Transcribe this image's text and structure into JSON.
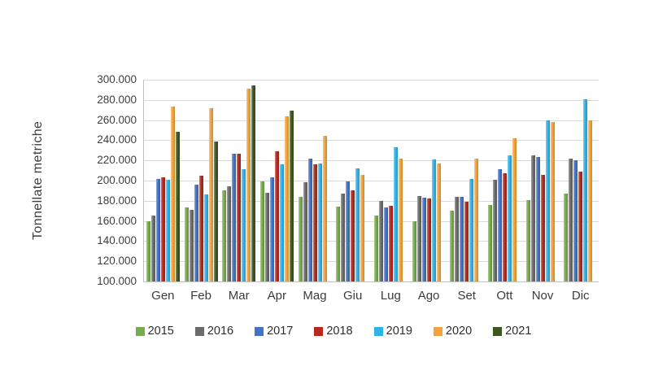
{
  "chart_data": {
    "type": "bar",
    "title": "",
    "xlabel": "",
    "ylabel": "Tonnellate metriche",
    "categories": [
      "Gen",
      "Feb",
      "Mar",
      "Apr",
      "Mag",
      "Giu",
      "Lug",
      "Ago",
      "Set",
      "Ott",
      "Nov",
      "Dic"
    ],
    "series": [
      {
        "name": "2015",
        "color": "#76AC4E",
        "values": [
          160000,
          173000,
          190000,
          199000,
          184000,
          174000,
          165000,
          160000,
          170000,
          176000,
          181000,
          187000
        ]
      },
      {
        "name": "2016",
        "color": "#6B6B6B",
        "values": [
          165000,
          171000,
          194000,
          188000,
          198000,
          187000,
          180000,
          185000,
          184000,
          201000,
          225000,
          222000
        ]
      },
      {
        "name": "2017",
        "color": "#4472C4",
        "values": [
          202000,
          196000,
          227000,
          203000,
          222000,
          199000,
          173000,
          183000,
          184000,
          211000,
          223000,
          220000
        ]
      },
      {
        "name": "2018",
        "color": "#B42A1F",
        "values": [
          203000,
          205000,
          227000,
          229000,
          216000,
          190000,
          175000,
          182000,
          179000,
          207000,
          206000,
          209000
        ]
      },
      {
        "name": "2019",
        "color": "#30B3E8",
        "values": [
          201000,
          186000,
          211000,
          216000,
          217000,
          212000,
          233000,
          221000,
          202000,
          225000,
          260000,
          281000
        ]
      },
      {
        "name": "2020",
        "color": "#F2A33C",
        "values": [
          273000,
          272000,
          291000,
          264000,
          244000,
          206000,
          222000,
          217000,
          222000,
          242000,
          258000,
          260000
        ]
      },
      {
        "name": "2021",
        "color": "#3E5622",
        "values": [
          248000,
          239000,
          294000,
          269000,
          null,
          null,
          null,
          null,
          null,
          null,
          null,
          null
        ]
      }
    ],
    "ylim": [
      100000,
      300000
    ],
    "ytick_step": 20000,
    "ytick_labels": [
      "100.000",
      "120.000",
      "140.000",
      "160.000",
      "180.000",
      "200.000",
      "220.000",
      "240.000",
      "260.000",
      "280.000",
      "300.000"
    ],
    "grid": true,
    "grid_color": "#D9D9D9",
    "axis_color": "#BFBFBF",
    "legend_position": "bottom"
  }
}
